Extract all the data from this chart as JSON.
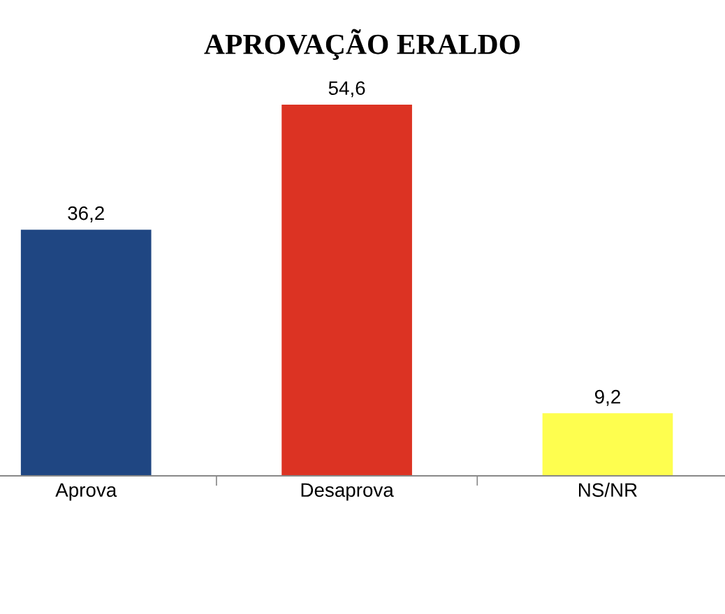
{
  "chart_data": {
    "type": "bar",
    "title": "APROVAÇÃO ERALDO",
    "categories": [
      "Aprova",
      "Desaprova",
      "NS/NR"
    ],
    "values": [
      36.2,
      54.6,
      9.2
    ],
    "colors": [
      "#1f4682",
      "#dc3323",
      "#fefe4f"
    ],
    "value_labels": [
      "36,2",
      "54,6",
      "9,2"
    ],
    "grid": false,
    "legend": false
  }
}
